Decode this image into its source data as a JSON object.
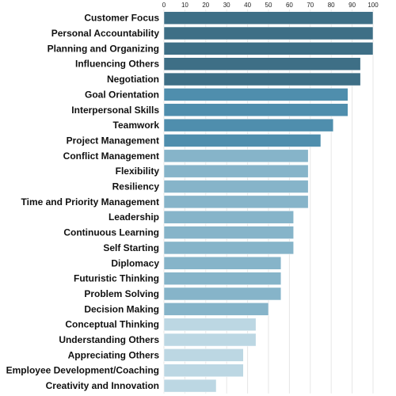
{
  "chart_data": {
    "type": "bar",
    "orientation": "horizontal",
    "title": "",
    "xlabel": "",
    "ylabel": "",
    "xlim": [
      0,
      100
    ],
    "x_ticks": [
      "0",
      "10",
      "20",
      "30",
      "40",
      "50",
      "60",
      "70",
      "80",
      "90",
      "100"
    ],
    "x_axis_position": "top",
    "grid": true,
    "legend": "none",
    "categories": [
      "Customer Focus",
      "Personal Accountability",
      "Planning and Organizing",
      "Influencing Others",
      "Negotiation",
      "Goal Orientation",
      "Interpersonal Skills",
      "Teamwork",
      "Project Management",
      "Conflict Management",
      "Flexibility",
      "Resiliency",
      "Time and Priority Management",
      "Leadership",
      "Continuous Learning",
      "Self Starting",
      "Diplomacy",
      "Futuristic Thinking",
      "Problem Solving",
      "Decision Making",
      "Conceptual Thinking",
      "Understanding Others",
      "Appreciating Others",
      "Employee Development/Coaching",
      "Creativity and Innovation"
    ],
    "values": [
      100,
      100,
      100,
      94,
      94,
      88,
      88,
      81,
      75,
      69,
      69,
      69,
      69,
      62,
      62,
      62,
      56,
      56,
      56,
      50,
      44,
      44,
      38,
      38,
      25
    ],
    "bar_colors": [
      "#3e6f86",
      "#3e6f86",
      "#3e6f86",
      "#3e6f86",
      "#3e6f86",
      "#4f8ead",
      "#4f8ead",
      "#4f8ead",
      "#4f8ead",
      "#86b4c9",
      "#86b4c9",
      "#86b4c9",
      "#86b4c9",
      "#86b4c9",
      "#86b4c9",
      "#86b4c9",
      "#86b4c9",
      "#86b4c9",
      "#86b4c9",
      "#86b4c9",
      "#bcd7e3",
      "#bcd7e3",
      "#bcd7e3",
      "#bcd7e3",
      "#bcd7e3"
    ]
  }
}
